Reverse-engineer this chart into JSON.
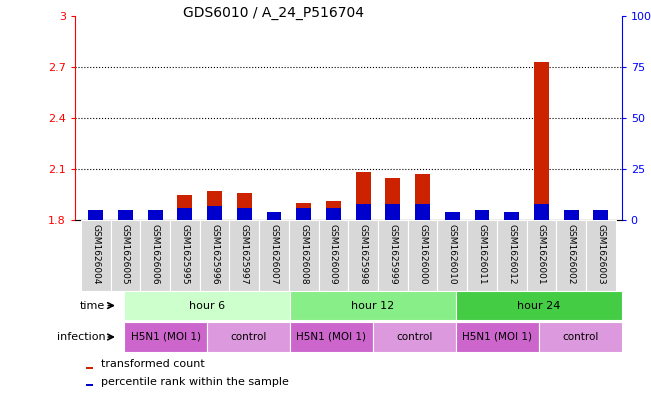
{
  "title": "GDS6010 / A_24_P516704",
  "samples": [
    "GSM1626004",
    "GSM1626005",
    "GSM1626006",
    "GSM1625995",
    "GSM1625996",
    "GSM1625997",
    "GSM1626007",
    "GSM1626008",
    "GSM1626009",
    "GSM1625998",
    "GSM1625999",
    "GSM1626000",
    "GSM1626010",
    "GSM1626011",
    "GSM1626012",
    "GSM1626001",
    "GSM1626002",
    "GSM1626003"
  ],
  "red_values": [
    1.85,
    1.85,
    1.85,
    1.95,
    1.97,
    1.96,
    1.84,
    1.9,
    1.91,
    2.08,
    2.05,
    2.07,
    1.84,
    1.85,
    1.82,
    2.73,
    1.85,
    1.86
  ],
  "blue_pct": [
    5,
    5,
    5,
    6,
    7,
    6,
    4,
    6,
    6,
    8,
    8,
    8,
    4,
    5,
    4,
    8,
    5,
    5
  ],
  "ylim_left": [
    1.8,
    3.0
  ],
  "ylim_right": [
    0,
    100
  ],
  "yticks_left": [
    1.8,
    2.1,
    2.4,
    2.7,
    3.0
  ],
  "yticks_right": [
    0,
    25,
    50,
    75,
    100
  ],
  "ytick_labels_left": [
    "1.8",
    "2.1",
    "2.4",
    "2.7",
    "3"
  ],
  "ytick_labels_right": [
    "0",
    "25",
    "50",
    "75",
    "100%"
  ],
  "baseline": 1.8,
  "red_color": "#cc2200",
  "blue_color": "#0000cc",
  "bar_width": 0.5,
  "time_groups": [
    {
      "label": "hour 6",
      "start": 0,
      "end": 6
    },
    {
      "label": "hour 12",
      "start": 6,
      "end": 12
    },
    {
      "label": "hour 24",
      "start": 12,
      "end": 18
    }
  ],
  "time_colors": [
    "#ccffcc",
    "#88ee88",
    "#44cc44"
  ],
  "inf_labels": [
    "H5N1 (MOI 1)",
    "control",
    "H5N1 (MOI 1)",
    "control",
    "H5N1 (MOI 1)",
    "control"
  ],
  "inf_starts": [
    0,
    3,
    6,
    9,
    12,
    15
  ],
  "inf_ends": [
    3,
    6,
    9,
    12,
    15,
    18
  ],
  "inf_h5_color": "#cc66cc",
  "inf_ct_color": "#dd99dd",
  "bg_color": "#ffffff",
  "legend_red": "transformed count",
  "legend_blue": "percentile rank within the sample",
  "title_fontsize": 10,
  "label_fontsize": 6.5,
  "annot_fontsize": 8,
  "row_fontsize": 8
}
